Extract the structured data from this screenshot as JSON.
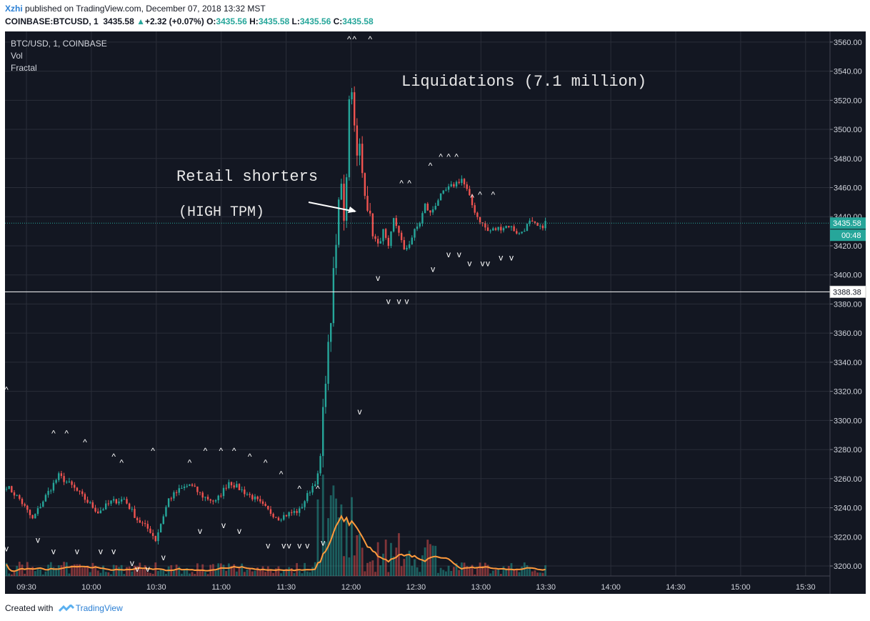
{
  "header": {
    "author": "Xzhi",
    "published": "published on TradingView.com, December 07, 2018 13:32 MST",
    "symbol": "COINBASE:BTCUSD, 1",
    "last": "3435.58",
    "change_arrow": "▲",
    "change": "+2.32 (+0.07%)",
    "o_label": "O:",
    "o": "3435.56",
    "h_label": "H:",
    "h": "3435.58",
    "l_label": "L:",
    "l": "3435.56",
    "c_label": "C:",
    "c": "3435.58"
  },
  "legend": {
    "series": "BTC/USD, 1, COINBASE",
    "vol": "Vol",
    "fractal": "Fractal"
  },
  "footer": {
    "created_with": "Created with",
    "brand": "TradingView"
  },
  "colors": {
    "background": "#131722",
    "up": "#26a69a",
    "down": "#ef5350",
    "vol_ma": "#ff9a3c",
    "grid": "#2a2e39",
    "text_light": "#d1d4dc"
  },
  "chart_data": {
    "type": "candlestick",
    "ylim": [
      3192,
      3570
    ],
    "y_ticks": [
      3200,
      3220,
      3240,
      3260,
      3280,
      3300,
      3320,
      3340,
      3360,
      3380,
      3400,
      3420,
      3440,
      3460,
      3480,
      3500,
      3520,
      3540,
      3560
    ],
    "x_ticks": [
      "09:30",
      "10:00",
      "10:30",
      "11:00",
      "11:30",
      "12:00",
      "12:30",
      "13:00",
      "13:30",
      "14:00",
      "14:30",
      "15:00",
      "15:30"
    ],
    "last_price": 3435.58,
    "countdown": "00:48",
    "reference_line": 3388.38,
    "grid": true,
    "annotations": [
      {
        "text": "Liquidations (7.1 million)"
      },
      {
        "text": "Retail shorters"
      },
      {
        "text": "(HIGH TPM)"
      }
    ],
    "price_path": [
      [
        0,
        3255
      ],
      [
        5,
        3246
      ],
      [
        10,
        3232
      ],
      [
        15,
        3248
      ],
      [
        20,
        3262
      ],
      [
        25,
        3255
      ],
      [
        30,
        3246
      ],
      [
        35,
        3237
      ],
      [
        40,
        3244
      ],
      [
        45,
        3246
      ],
      [
        50,
        3232
      ],
      [
        55,
        3224
      ],
      [
        57,
        3218
      ],
      [
        62,
        3246
      ],
      [
        66,
        3252
      ],
      [
        70,
        3256
      ],
      [
        75,
        3248
      ],
      [
        80,
        3244
      ],
      [
        85,
        3258
      ],
      [
        90,
        3252
      ],
      [
        95,
        3246
      ],
      [
        100,
        3238
      ],
      [
        104,
        3233
      ],
      [
        108,
        3236
      ],
      [
        112,
        3238
      ],
      [
        114,
        3245
      ],
      [
        116,
        3252
      ],
      [
        118,
        3258
      ],
      [
        119,
        3262
      ],
      [
        120,
        3275
      ],
      [
        121,
        3305
      ],
      [
        122,
        3330
      ],
      [
        123,
        3350
      ],
      [
        124,
        3370
      ],
      [
        125,
        3400
      ],
      [
        126,
        3420
      ],
      [
        127,
        3450
      ],
      [
        128,
        3465
      ],
      [
        129,
        3440
      ],
      [
        130,
        3470
      ],
      [
        131,
        3520
      ],
      [
        132,
        3530
      ],
      [
        133,
        3500
      ],
      [
        134,
        3480
      ],
      [
        135,
        3488
      ],
      [
        136,
        3470
      ],
      [
        138,
        3448
      ],
      [
        140,
        3428
      ],
      [
        142,
        3420
      ],
      [
        144,
        3430
      ],
      [
        146,
        3418
      ],
      [
        148,
        3438
      ],
      [
        150,
        3430
      ],
      [
        152,
        3416
      ],
      [
        154,
        3422
      ],
      [
        156,
        3430
      ],
      [
        158,
        3436
      ],
      [
        160,
        3448
      ],
      [
        162,
        3442
      ],
      [
        165,
        3452
      ],
      [
        168,
        3458
      ],
      [
        171,
        3462
      ],
      [
        174,
        3466
      ],
      [
        176,
        3458
      ],
      [
        178,
        3448
      ],
      [
        180,
        3440
      ],
      [
        184,
        3430
      ],
      [
        188,
        3432
      ],
      [
        192,
        3434
      ],
      [
        196,
        3428
      ],
      [
        200,
        3436
      ],
      [
        204,
        3432
      ],
      [
        206,
        3436
      ]
    ],
    "up_fractals": [
      [
        0,
        3322
      ],
      [
        18,
        3292
      ],
      [
        23,
        3292
      ],
      [
        30,
        3286
      ],
      [
        41,
        3276
      ],
      [
        44,
        3272
      ],
      [
        56,
        3280
      ],
      [
        70,
        3272
      ],
      [
        76,
        3280
      ],
      [
        82,
        3280
      ],
      [
        87,
        3280
      ],
      [
        93,
        3276
      ],
      [
        99,
        3272
      ],
      [
        105,
        3264
      ],
      [
        112,
        3254
      ],
      [
        119,
        3254
      ],
      [
        131,
        3563
      ],
      [
        133,
        3563
      ],
      [
        139,
        3563
      ],
      [
        151,
        3464
      ],
      [
        154,
        3464
      ],
      [
        162,
        3476
      ],
      [
        166,
        3482
      ],
      [
        169,
        3482
      ],
      [
        172,
        3482
      ],
      [
        178,
        3454
      ],
      [
        181,
        3456
      ],
      [
        186,
        3456
      ]
    ],
    "down_fractals": [
      [
        0,
        3212
      ],
      [
        12,
        3218
      ],
      [
        18,
        3210
      ],
      [
        27,
        3210
      ],
      [
        36,
        3210
      ],
      [
        41,
        3210
      ],
      [
        48,
        3202
      ],
      [
        50,
        3198
      ],
      [
        54,
        3198
      ],
      [
        60,
        3206
      ],
      [
        74,
        3224
      ],
      [
        83,
        3228
      ],
      [
        89,
        3224
      ],
      [
        100,
        3214
      ],
      [
        106,
        3214
      ],
      [
        108,
        3214
      ],
      [
        112,
        3214
      ],
      [
        115,
        3214
      ],
      [
        121,
        3216
      ],
      [
        135,
        3306
      ],
      [
        142,
        3398
      ],
      [
        146,
        3382
      ],
      [
        150,
        3382
      ],
      [
        153,
        3382
      ],
      [
        163,
        3404
      ],
      [
        169,
        3414
      ],
      [
        173,
        3414
      ],
      [
        177,
        3408
      ],
      [
        182,
        3408
      ],
      [
        184,
        3408
      ],
      [
        189,
        3412
      ],
      [
        193,
        3412
      ]
    ]
  }
}
